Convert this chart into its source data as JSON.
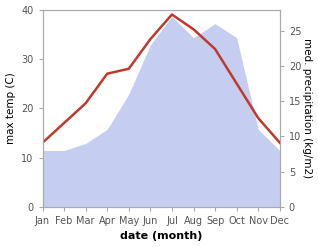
{
  "months": [
    "Jan",
    "Feb",
    "Mar",
    "Apr",
    "May",
    "Jun",
    "Jul",
    "Aug",
    "Sep",
    "Oct",
    "Nov",
    "Dec"
  ],
  "temperature": [
    13,
    17,
    21,
    27,
    28,
    34,
    39,
    36,
    32,
    25,
    18,
    13
  ],
  "precipitation": [
    8,
    8,
    9,
    11,
    16,
    23,
    27,
    24,
    26,
    24,
    11,
    8
  ],
  "temp_color": "#c0392b",
  "precip_fill_color": "#c5cef0",
  "ylim_temp": [
    0,
    40
  ],
  "ylim_precip": [
    0,
    28
  ],
  "yticks_temp": [
    0,
    10,
    20,
    30,
    40
  ],
  "yticks_precip": [
    0,
    5,
    10,
    15,
    20,
    25
  ],
  "ylabel_left": "max temp (C)",
  "ylabel_right": "med. precipitation (kg/m2)",
  "xlabel": "date (month)",
  "bg_color": "#ffffff",
  "tick_color": "#555555",
  "spine_color": "#aaaaaa",
  "temp_linewidth": 1.8,
  "xlabel_fontsize": 8,
  "ylabel_fontsize": 7.5,
  "tick_fontsize": 7
}
